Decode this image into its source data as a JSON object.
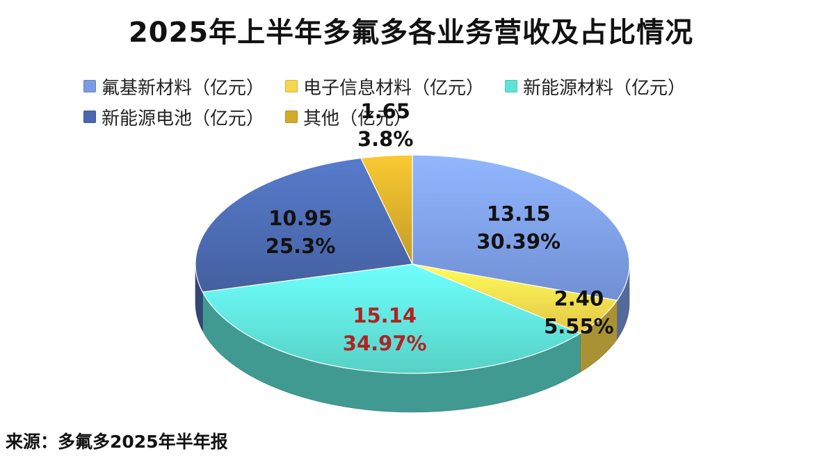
{
  "chart_data": {
    "type": "pie",
    "title": "2025年上半年多氟多各业务营收及占比情况",
    "unit": "亿元",
    "legend_position": "top",
    "slices": [
      {
        "name": "氟基新材料（亿元）",
        "value": 13.15,
        "value_label": "13.15",
        "percent_label": "30.39%",
        "color": "#7b9be6"
      },
      {
        "name": "电子信息材料（亿元）",
        "value": 2.4,
        "value_label": "2.40",
        "percent_label": "5.55%",
        "color": "#f7d64b"
      },
      {
        "name": "新能源材料（亿元）",
        "value": 15.14,
        "value_label": "15.14",
        "percent_label": "34.97%",
        "color": "#5ee3d6",
        "label_color": "#b22222"
      },
      {
        "name": "新能源电池（亿元）",
        "value": 10.95,
        "value_label": "10.95",
        "percent_label": "25.3%",
        "color": "#4a68ad"
      },
      {
        "name": "其他（亿元）",
        "value": 1.65,
        "value_label": "1.65",
        "percent_label": "3.8%",
        "color": "#d4aa2a"
      }
    ]
  },
  "legend": {
    "row1": [
      {
        "label": "氟基新材料（亿元）",
        "color": "#7b9be6"
      },
      {
        "label": "电子信息材料（亿元）",
        "color": "#f7d64b"
      },
      {
        "label": "新能源材料（亿元）",
        "color": "#5ee3d6"
      }
    ],
    "row2": [
      {
        "label": "新能源电池（亿元）",
        "color": "#4a68ad"
      },
      {
        "label": "其他（亿元）",
        "color": "#d4aa2a"
      }
    ]
  },
  "source": "来源：多氟多2025年半年报"
}
